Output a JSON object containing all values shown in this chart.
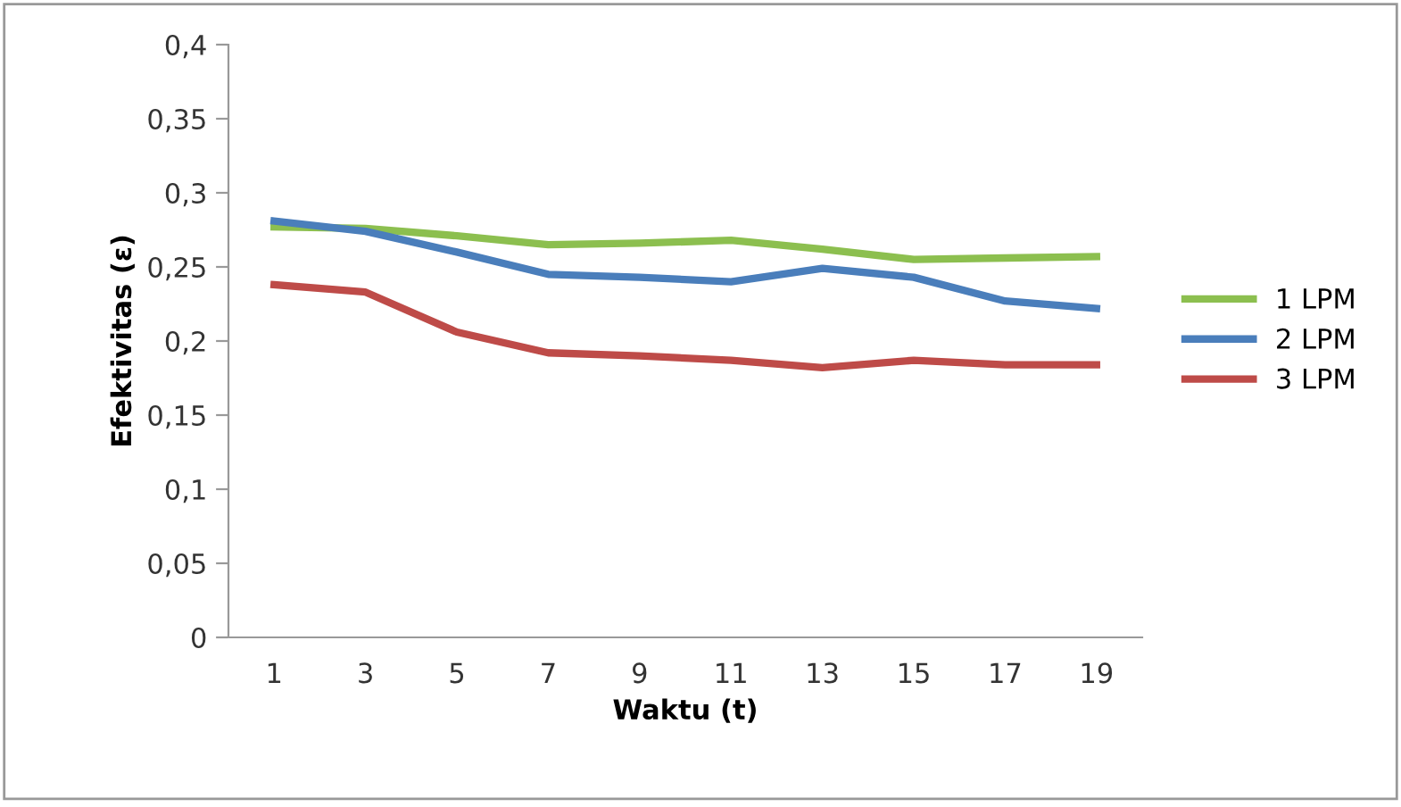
{
  "chart_data": {
    "type": "line",
    "xlabel": "Waktu (t)",
    "ylabel": "Efektivitas (ε)",
    "categories": [
      "1",
      "3",
      "5",
      "7",
      "9",
      "11",
      "13",
      "15",
      "17",
      "19"
    ],
    "ylim": [
      0,
      0.4
    ],
    "yticks": [
      {
        "value": 0,
        "label": "0"
      },
      {
        "value": 0.05,
        "label": "0,05"
      },
      {
        "value": 0.1,
        "label": "0,1"
      },
      {
        "value": 0.15,
        "label": "0,15"
      },
      {
        "value": 0.2,
        "label": "0,2"
      },
      {
        "value": 0.25,
        "label": "0,25"
      },
      {
        "value": 0.3,
        "label": "0,3"
      },
      {
        "value": 0.35,
        "label": "0,35"
      },
      {
        "value": 0.4,
        "label": "0,4"
      }
    ],
    "grid": false,
    "legend": "right",
    "marker": "none",
    "line_style": "solid",
    "series": [
      {
        "name": "1 LPM",
        "color": "#8cbf4f",
        "values": [
          0.277,
          0.276,
          0.271,
          0.265,
          0.266,
          0.268,
          0.262,
          0.255,
          0.256,
          0.257
        ]
      },
      {
        "name": "2 LPM",
        "color": "#4a7ebb",
        "values": [
          0.281,
          0.274,
          0.26,
          0.245,
          0.243,
          0.24,
          0.249,
          0.243,
          0.227,
          0.222
        ]
      },
      {
        "name": "3 LPM",
        "color": "#be4b48",
        "values": [
          0.238,
          0.233,
          0.206,
          0.192,
          0.19,
          0.187,
          0.182,
          0.187,
          0.184,
          0.184
        ]
      }
    ]
  }
}
